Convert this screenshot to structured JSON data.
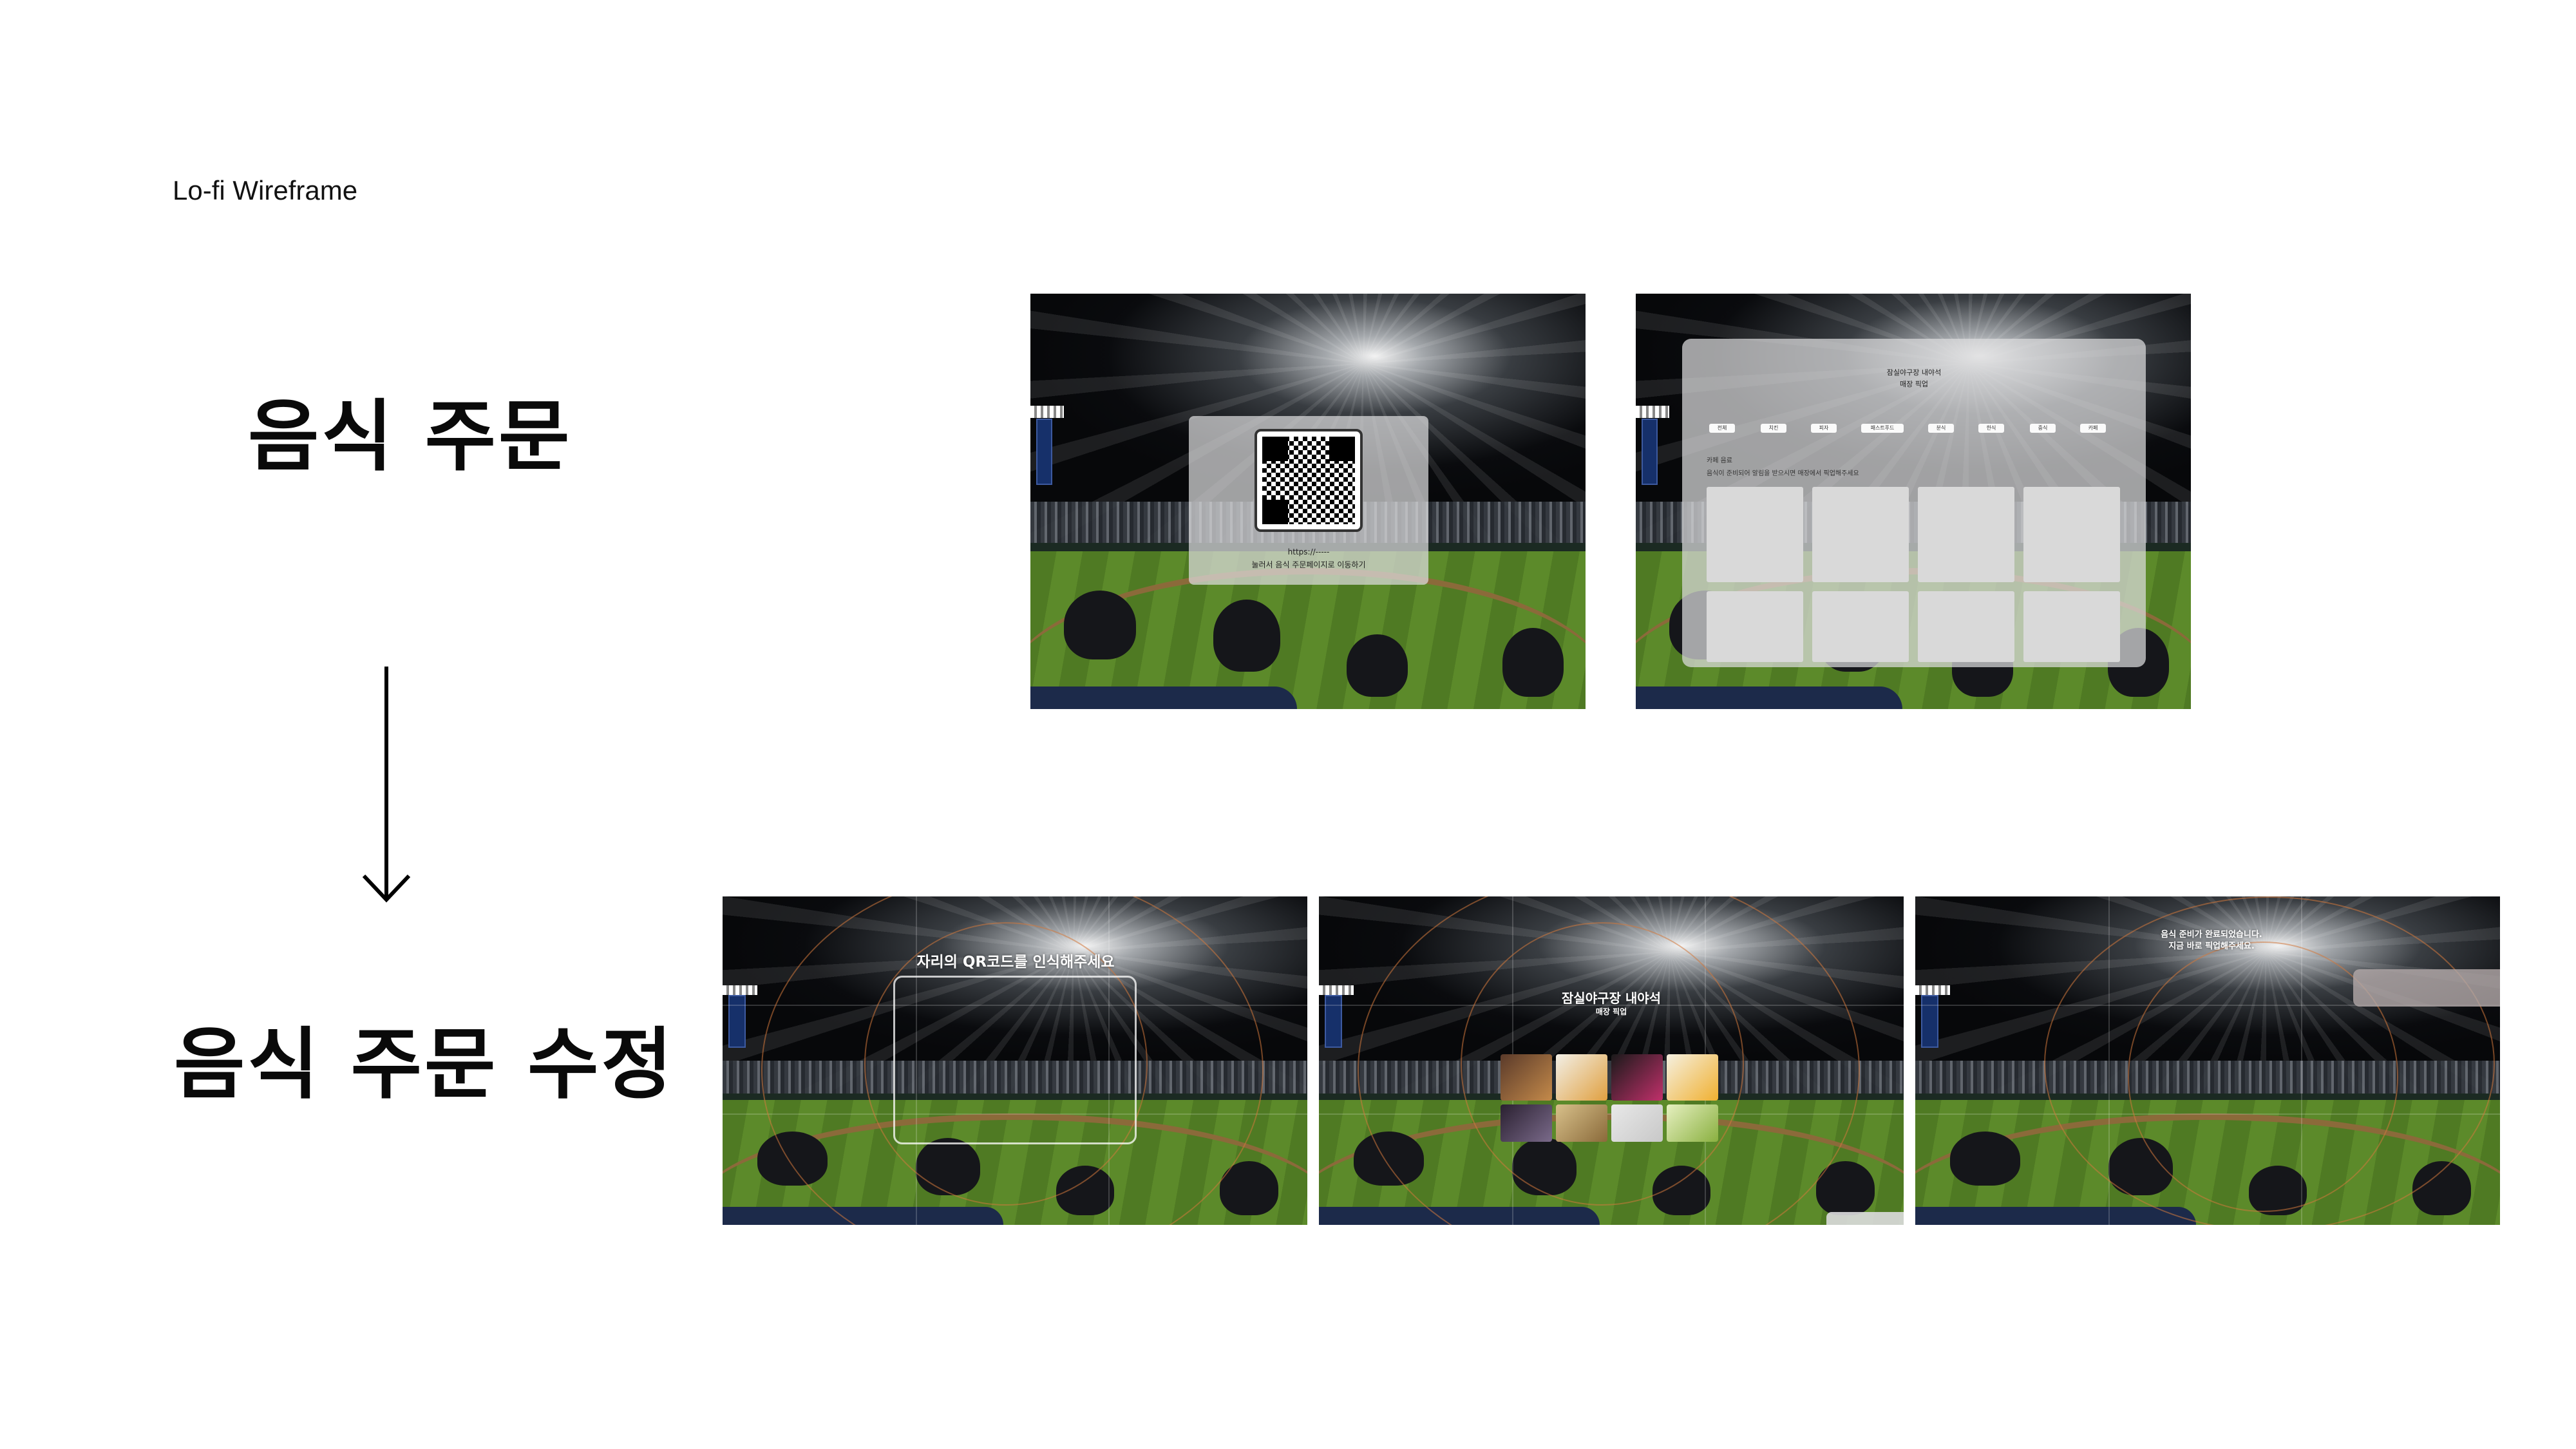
{
  "header": {
    "label": "Lo-fi Wireframe"
  },
  "sections": {
    "original": {
      "title": "음식 주문"
    },
    "revised": {
      "title": "음식 주문 수정"
    }
  },
  "frames": {
    "qr_order": {
      "url": "https://-----",
      "caption": "눌러서 음식 주문페이지로 이동하기"
    },
    "menu_page": {
      "store_name": "잠실야구장 내야석",
      "store_sub": "매장 픽업",
      "categories": [
        "전체",
        "치킨",
        "피자",
        "패스트푸드",
        "분식",
        "한식",
        "중식",
        "카페"
      ],
      "section_label": "카페 음료",
      "notice": "음식이 준비되어 알림을 받으시면 매장에서 픽업해주세요"
    },
    "ar_scan": {
      "prompt": "자리의 QR코드를 인식해주세요"
    },
    "ar_menu": {
      "store_name": "잠실야구장 내야석",
      "store_sub": "매장 픽업"
    },
    "ar_done": {
      "line1": "음식 준비가 완료되었습니다.",
      "line2": "지금 바로 픽업해주세요."
    }
  },
  "colors": {
    "background": "#ffffff",
    "ring": "#d2783c",
    "glass": "#dcdcde",
    "tile": "#d9d9d9"
  }
}
